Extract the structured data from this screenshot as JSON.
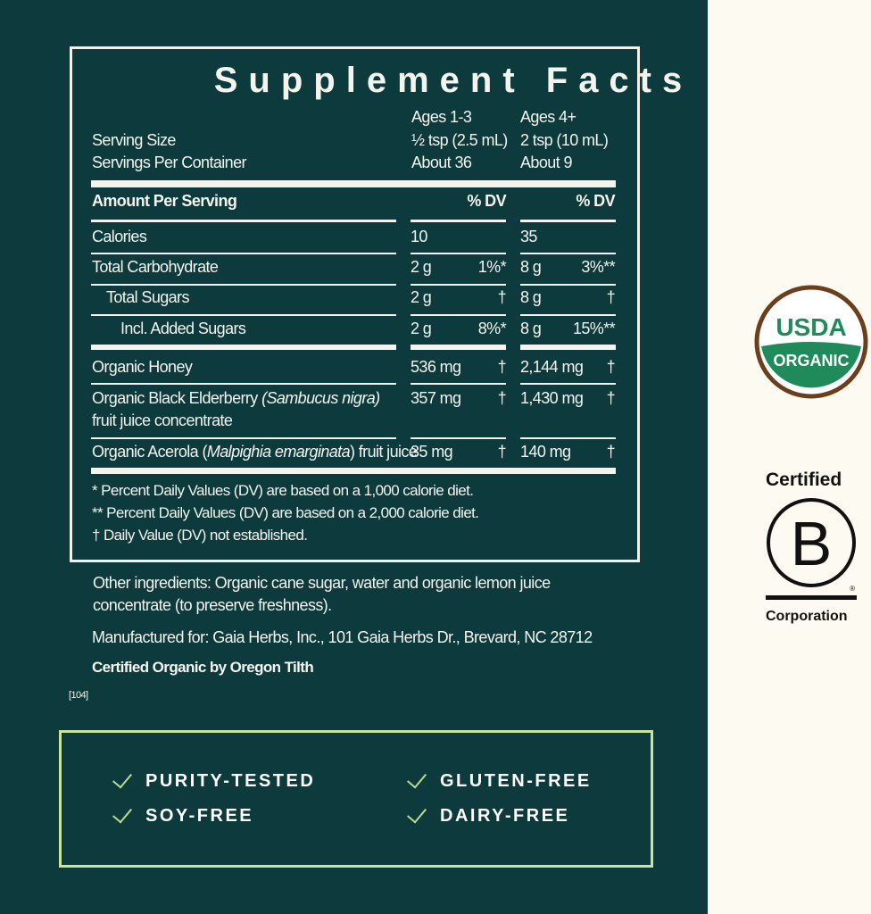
{
  "title": "Supplement Facts",
  "header": {
    "col1_age": "Ages 1-3",
    "col2_age": "Ages 4+",
    "serving_size_label": "Serving Size",
    "col1_serving": "½ tsp (2.5 mL)",
    "col2_serving": "2 tsp (10 mL)",
    "servings_label": "Servings Per Container",
    "col1_servings": "About 36",
    "col2_servings": "About 9"
  },
  "amount_label": "Amount Per Serving",
  "dv_label": "% DV",
  "rows": [
    {
      "label": "Calories",
      "v1": "10",
      "d1": "",
      "v2": "35",
      "d2": ""
    },
    {
      "label": "Total Carbohydrate",
      "v1": "2 g",
      "d1": "1%*",
      "v2": "8 g",
      "d2": "3%**"
    },
    {
      "label": "Total Sugars",
      "v1": "2 g",
      "d1": "†",
      "v2": "8 g",
      "d2": "†"
    },
    {
      "label": "Incl. Added Sugars",
      "v1": "2 g",
      "d1": "8%*",
      "v2": "8 g",
      "d2": "15%**"
    },
    {
      "label": "Organic Honey",
      "v1": "536 mg",
      "d1": "†",
      "v2": "2,144 mg",
      "d2": "†"
    },
    {
      "label": "Organic Black Elderberry ",
      "label_italic": "(Sambucus nigra)",
      "label2": "fruit juice concentrate",
      "v1": "357 mg",
      "d1": "†",
      "v2": "1,430 mg",
      "d2": "†"
    },
    {
      "label": "Organic Acerola (",
      "label_italic": "Malpighia emarginata",
      "label_end": ") fruit juice",
      "v1": "35 mg",
      "d1": "†",
      "v2": "140 mg",
      "d2": "†"
    }
  ],
  "footnotes": [
    "*  Percent Daily Values (DV) are based on a 1,000 calorie diet.",
    "** Percent Daily Values (DV) are based on a 2,000 calorie diet.",
    "†  Daily Value (DV) not established."
  ],
  "other_ingredients": [
    "Other ingredients: Organic cane sugar, water and organic lemon juice",
    "concentrate (to preserve freshness)."
  ],
  "manufacturer": "Manufactured for: Gaia Herbs, Inc., 101 Gaia Herbs Dr., Brevard, NC 28712",
  "certified": "Certified Organic by Oregon Tilth",
  "code": "[104]",
  "features": [
    "PURITY-TESTED",
    "SOY-FREE",
    "GLUTEN-FREE",
    "DAIRY-FREE"
  ],
  "usda": {
    "top": "USDA",
    "bottom": "ORGANIC"
  },
  "bcorp": {
    "top": "Certified",
    "letter": "B",
    "bottom": "Corporation",
    "mark": "®"
  },
  "colors": {
    "background": "#0d3a3c",
    "cream": "#fdfbf1",
    "check": "#b8dc8c",
    "usda_green": "#1f8a5a",
    "usda_brown": "#6b3f1e"
  }
}
